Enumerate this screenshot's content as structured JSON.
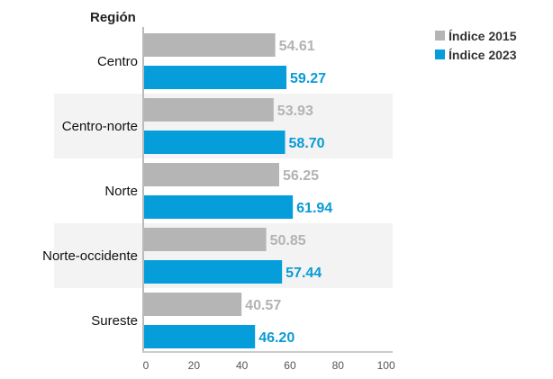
{
  "chart_data": {
    "type": "bar",
    "orientation": "horizontal",
    "title": "Región",
    "categories": [
      "Centro",
      "Centro-norte",
      "Norte",
      "Norte-occidente",
      "Sureste"
    ],
    "series": [
      {
        "name": "Índice 2015",
        "color": "#b5b5b5",
        "label_color": "#b3b3b3",
        "values": [
          54.61,
          53.93,
          56.25,
          50.85,
          40.57
        ],
        "labels": [
          "54.61",
          "53.93",
          "56.25",
          "50.85",
          "40.57"
        ]
      },
      {
        "name": "Índice 2023",
        "color": "#069ddb",
        "label_color": "#0a9ad6",
        "values": [
          59.27,
          58.7,
          61.94,
          57.44,
          46.2
        ],
        "labels": [
          "59.27",
          "58.70",
          "61.94",
          "57.44",
          "46.20"
        ]
      }
    ],
    "xlim": [
      0,
      100
    ],
    "xticks": [
      "0",
      "20",
      "40",
      "60",
      "80",
      "100"
    ],
    "legend_position": "top-right",
    "band_color": "#f3f3f3"
  }
}
